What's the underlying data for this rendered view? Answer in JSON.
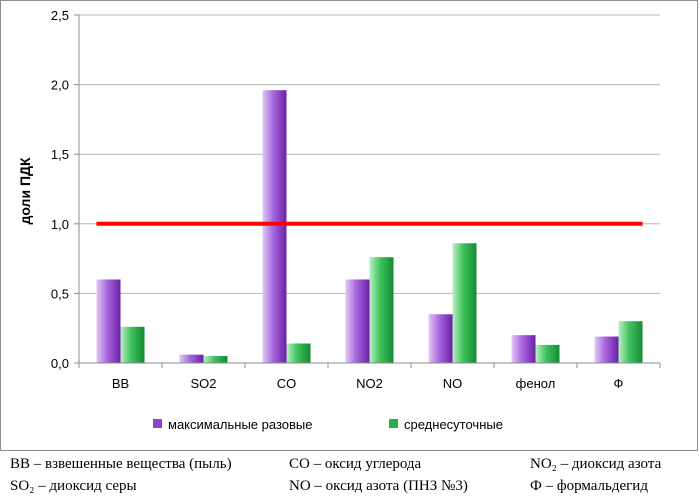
{
  "chart_data": {
    "type": "bar",
    "ylabel": "доли ПДК",
    "ylim": [
      0,
      2.5
    ],
    "yticks": [
      "0,0",
      "0,5",
      "1,0",
      "1,5",
      "2,0",
      "2,5"
    ],
    "categories": [
      "ВВ",
      "SO2",
      "CO",
      "NO2",
      "NO",
      "фенол",
      "Ф"
    ],
    "series": [
      {
        "name": "максимальные разовые",
        "color": "#8e44c9",
        "values": [
          0.6,
          0.06,
          1.96,
          0.6,
          0.35,
          0.2,
          0.19
        ]
      },
      {
        "name": "среднесуточные",
        "color": "#22b14c",
        "values": [
          0.26,
          0.05,
          0.14,
          0.76,
          0.86,
          0.13,
          0.3
        ]
      }
    ],
    "reference_line": {
      "value": 1.0,
      "color": "#ff0000"
    },
    "grid": true,
    "legend_position": "bottom"
  },
  "notes": {
    "row1": [
      "ВВ – взвешенные вещества (пыль)",
      "СО – оксид углерода",
      "NO₂ – диоксид азота"
    ],
    "row2": [
      "SO₂ – диоксид серы",
      "NO – оксид азота (ПНЗ №3)",
      "Ф – формальдегид"
    ]
  }
}
